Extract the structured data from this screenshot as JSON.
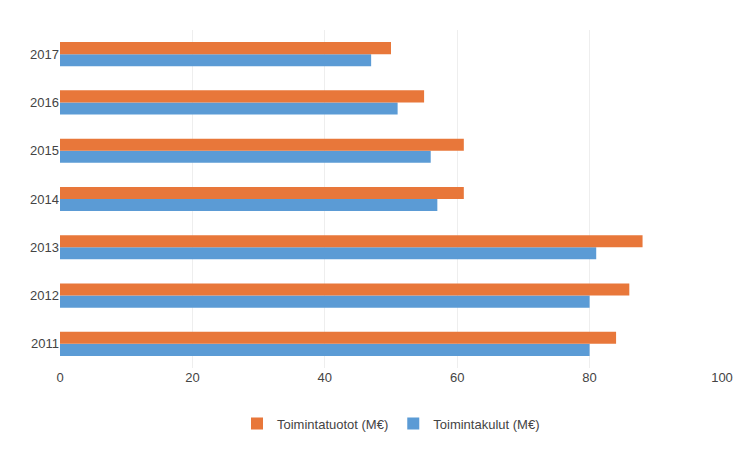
{
  "chart_data": {
    "type": "bar",
    "orientation": "horizontal",
    "categories": [
      "2011",
      "2012",
      "2013",
      "2014",
      "2015",
      "2016",
      "2017"
    ],
    "series": [
      {
        "name": "Toimintatuotot (M€)",
        "color": "#E8773A",
        "values": [
          84,
          86,
          88,
          61,
          61,
          55,
          50
        ]
      },
      {
        "name": "Toimintakulut (M€)",
        "color": "#5B9BD5",
        "values": [
          80,
          80,
          81,
          57,
          56,
          51,
          47
        ]
      }
    ],
    "xlim": [
      0,
      100
    ],
    "xticks": [
      0,
      20,
      40,
      60,
      80,
      100
    ],
    "grid": true,
    "legend": "bottom"
  }
}
